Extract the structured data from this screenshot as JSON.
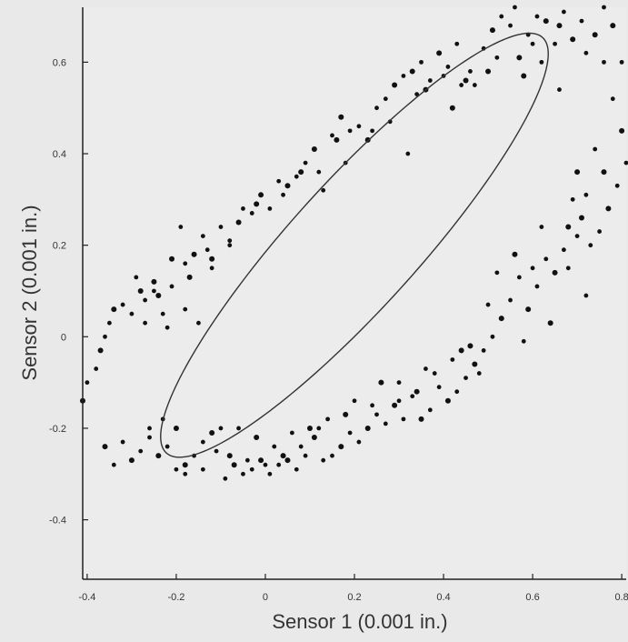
{
  "chart_data": {
    "type": "scatter",
    "title": "",
    "xlabel": "Sensor 1 (0.001 in.)",
    "ylabel": "Sensor 2 (0.001 in.)",
    "xlim": [
      -0.41,
      0.81
    ],
    "ylim": [
      -0.53,
      0.72
    ],
    "xticks": [
      -0.4,
      -0.2,
      0,
      0.2,
      0.4,
      0.6,
      0.8
    ],
    "xtick_labels": [
      "-0.4",
      "-0.2",
      "0",
      "0.2",
      "0.4",
      "0.6",
      "0.8"
    ],
    "yticks": [
      -0.4,
      -0.2,
      0,
      0.2,
      0.4,
      0.6
    ],
    "ytick_labels": [
      "-0.4",
      "-0.2",
      "0",
      "0.2",
      "0.4",
      "0.6"
    ],
    "grid": false,
    "legend": false,
    "colors": {
      "background": "#e9e9e9",
      "plot_background": "#ececec",
      "axes": "#222222",
      "points": "#111111",
      "ellipse": "#333333"
    },
    "series": [
      {
        "type": "scatter",
        "points": [
          [
            -0.41,
            -0.14
          ],
          [
            -0.4,
            -0.1
          ],
          [
            -0.38,
            -0.07
          ],
          [
            -0.37,
            -0.03
          ],
          [
            -0.36,
            0.0
          ],
          [
            -0.35,
            0.03
          ],
          [
            -0.34,
            0.06
          ],
          [
            -0.32,
            0.07
          ],
          [
            -0.3,
            0.05
          ],
          [
            -0.28,
            0.1
          ],
          [
            -0.27,
            0.08
          ],
          [
            -0.25,
            0.1
          ],
          [
            -0.24,
            0.09
          ],
          [
            -0.23,
            0.05
          ],
          [
            -0.22,
            0.02
          ],
          [
            -0.21,
            0.17
          ],
          [
            -0.19,
            0.24
          ],
          [
            -0.18,
            0.16
          ],
          [
            -0.16,
            0.18
          ],
          [
            -0.14,
            0.22
          ],
          [
            -0.13,
            0.19
          ],
          [
            -0.12,
            0.17
          ],
          [
            -0.1,
            0.24
          ],
          [
            -0.08,
            0.21
          ],
          [
            -0.06,
            0.25
          ],
          [
            -0.05,
            0.28
          ],
          [
            -0.03,
            0.27
          ],
          [
            -0.01,
            0.31
          ],
          [
            0.01,
            0.28
          ],
          [
            0.03,
            0.34
          ],
          [
            0.05,
            0.33
          ],
          [
            0.07,
            0.35
          ],
          [
            0.09,
            0.38
          ],
          [
            0.11,
            0.41
          ],
          [
            0.13,
            0.32
          ],
          [
            0.15,
            0.44
          ],
          [
            0.17,
            0.48
          ],
          [
            0.19,
            0.45
          ],
          [
            0.21,
            0.46
          ],
          [
            0.23,
            0.43
          ],
          [
            0.25,
            0.5
          ],
          [
            0.27,
            0.52
          ],
          [
            0.29,
            0.55
          ],
          [
            0.31,
            0.57
          ],
          [
            0.32,
            0.4
          ],
          [
            0.33,
            0.58
          ],
          [
            0.35,
            0.6
          ],
          [
            0.37,
            0.56
          ],
          [
            0.39,
            0.62
          ],
          [
            0.41,
            0.59
          ],
          [
            0.43,
            0.64
          ],
          [
            0.45,
            0.56
          ],
          [
            0.47,
            0.55
          ],
          [
            0.49,
            0.63
          ],
          [
            0.51,
            0.67
          ],
          [
            0.53,
            0.7
          ],
          [
            0.55,
            0.68
          ],
          [
            0.57,
            0.61
          ],
          [
            0.59,
            0.66
          ],
          [
            0.61,
            0.7
          ],
          [
            0.63,
            0.69
          ],
          [
            0.65,
            0.64
          ],
          [
            0.67,
            0.71
          ],
          [
            0.69,
            0.65
          ],
          [
            0.71,
            0.69
          ],
          [
            0.72,
            0.62
          ],
          [
            0.74,
            0.66
          ],
          [
            0.76,
            0.6
          ],
          [
            0.78,
            0.52
          ],
          [
            0.8,
            0.45
          ],
          [
            0.81,
            0.38
          ],
          [
            0.79,
            0.33
          ],
          [
            0.77,
            0.28
          ],
          [
            0.75,
            0.23
          ],
          [
            0.73,
            0.2
          ],
          [
            0.71,
            0.26
          ],
          [
            0.69,
            0.3
          ],
          [
            0.67,
            0.19
          ],
          [
            0.65,
            0.14
          ],
          [
            0.63,
            0.17
          ],
          [
            0.61,
            0.11
          ],
          [
            0.59,
            0.06
          ],
          [
            0.57,
            0.13
          ],
          [
            0.55,
            0.08
          ],
          [
            0.53,
            0.04
          ],
          [
            0.51,
            0.0
          ],
          [
            0.49,
            -0.03
          ],
          [
            0.47,
            -0.06
          ],
          [
            0.45,
            -0.09
          ],
          [
            0.43,
            -0.12
          ],
          [
            0.41,
            -0.14
          ],
          [
            0.39,
            -0.11
          ],
          [
            0.37,
            -0.16
          ],
          [
            0.35,
            -0.18
          ],
          [
            0.33,
            -0.13
          ],
          [
            0.31,
            -0.18
          ],
          [
            0.29,
            -0.15
          ],
          [
            0.27,
            -0.19
          ],
          [
            0.25,
            -0.17
          ],
          [
            0.23,
            -0.2
          ],
          [
            0.21,
            -0.23
          ],
          [
            0.19,
            -0.21
          ],
          [
            0.17,
            -0.24
          ],
          [
            0.15,
            -0.26
          ],
          [
            0.13,
            -0.27
          ],
          [
            0.11,
            -0.22
          ],
          [
            0.09,
            -0.26
          ],
          [
            0.07,
            -0.29
          ],
          [
            0.05,
            -0.27
          ],
          [
            0.03,
            -0.28
          ],
          [
            0.01,
            -0.3
          ],
          [
            -0.01,
            -0.27
          ],
          [
            -0.03,
            -0.29
          ],
          [
            -0.05,
            -0.3
          ],
          [
            -0.07,
            -0.28
          ],
          [
            -0.09,
            -0.31
          ],
          [
            -0.11,
            -0.25
          ],
          [
            -0.12,
            -0.21
          ],
          [
            -0.14,
            -0.23
          ],
          [
            -0.16,
            -0.26
          ],
          [
            -0.18,
            -0.28
          ],
          [
            -0.2,
            -0.29
          ],
          [
            -0.22,
            -0.24
          ],
          [
            -0.24,
            -0.26
          ],
          [
            -0.26,
            -0.22
          ],
          [
            -0.28,
            -0.25
          ],
          [
            -0.3,
            -0.27
          ],
          [
            -0.32,
            -0.23
          ],
          [
            -0.34,
            -0.28
          ],
          [
            -0.36,
            -0.24
          ],
          [
            -0.29,
            0.13
          ],
          [
            -0.27,
            0.03
          ],
          [
            -0.25,
            0.12
          ],
          [
            -0.18,
            0.06
          ],
          [
            -0.15,
            0.03
          ],
          [
            0.08,
            0.36
          ],
          [
            0.18,
            0.38
          ],
          [
            0.34,
            0.53
          ],
          [
            0.42,
            0.5
          ],
          [
            0.46,
            0.58
          ],
          [
            0.52,
            0.61
          ],
          [
            0.58,
            0.57
          ],
          [
            0.62,
            0.6
          ],
          [
            0.66,
            0.54
          ],
          [
            0.7,
            0.36
          ],
          [
            0.72,
            0.09
          ],
          [
            0.68,
            0.15
          ],
          [
            0.64,
            0.03
          ],
          [
            0.58,
            -0.01
          ],
          [
            0.48,
            -0.08
          ],
          [
            0.44,
            -0.03
          ],
          [
            0.36,
            -0.07
          ],
          [
            0.3,
            -0.1
          ],
          [
            0.26,
            -0.1
          ],
          [
            0.2,
            -0.14
          ],
          [
            0.14,
            -0.18
          ],
          [
            0.1,
            -0.2
          ],
          [
            0.06,
            -0.21
          ],
          [
            0.02,
            -0.24
          ],
          [
            -0.02,
            -0.22
          ],
          [
            -0.06,
            -0.2
          ],
          [
            -0.1,
            -0.2
          ],
          [
            -0.2,
            -0.2
          ],
          [
            -0.23,
            -0.18
          ],
          [
            -0.26,
            -0.2
          ],
          [
            0.78,
            0.68
          ],
          [
            0.8,
            0.6
          ],
          [
            0.76,
            0.72
          ],
          [
            0.66,
            0.68
          ],
          [
            0.6,
            0.64
          ],
          [
            0.56,
            0.72
          ],
          [
            0.5,
            0.58
          ],
          [
            0.44,
            0.55
          ],
          [
            0.4,
            0.57
          ],
          [
            0.36,
            0.54
          ],
          [
            0.28,
            0.47
          ],
          [
            0.24,
            0.45
          ],
          [
            0.16,
            0.43
          ],
          [
            0.12,
            0.36
          ],
          [
            0.04,
            0.31
          ],
          [
            -0.02,
            0.29
          ],
          [
            -0.08,
            0.2
          ],
          [
            -0.12,
            0.15
          ],
          [
            -0.17,
            0.13
          ],
          [
            -0.21,
            0.11
          ],
          [
            0.74,
            0.41
          ],
          [
            0.76,
            0.36
          ],
          [
            0.72,
            0.31
          ],
          [
            0.7,
            0.22
          ],
          [
            0.68,
            0.24
          ],
          [
            0.62,
            0.24
          ],
          [
            0.6,
            0.15
          ],
          [
            0.56,
            0.18
          ],
          [
            0.52,
            0.14
          ],
          [
            0.5,
            0.07
          ],
          [
            0.46,
            -0.02
          ],
          [
            0.42,
            -0.05
          ],
          [
            0.38,
            -0.08
          ],
          [
            0.34,
            -0.12
          ],
          [
            0.3,
            -0.14
          ],
          [
            0.24,
            -0.15
          ],
          [
            0.18,
            -0.17
          ],
          [
            0.12,
            -0.2
          ],
          [
            0.08,
            -0.24
          ],
          [
            0.04,
            -0.26
          ],
          [
            0.0,
            -0.28
          ],
          [
            -0.04,
            -0.27
          ],
          [
            -0.08,
            -0.26
          ],
          [
            -0.14,
            -0.29
          ],
          [
            -0.18,
            -0.3
          ]
        ]
      }
    ],
    "fit_ellipse": {
      "center": [
        0.2,
        0.2
      ],
      "semi_major": 0.62,
      "semi_minor": 0.14,
      "rotation_degrees": 47
    }
  }
}
